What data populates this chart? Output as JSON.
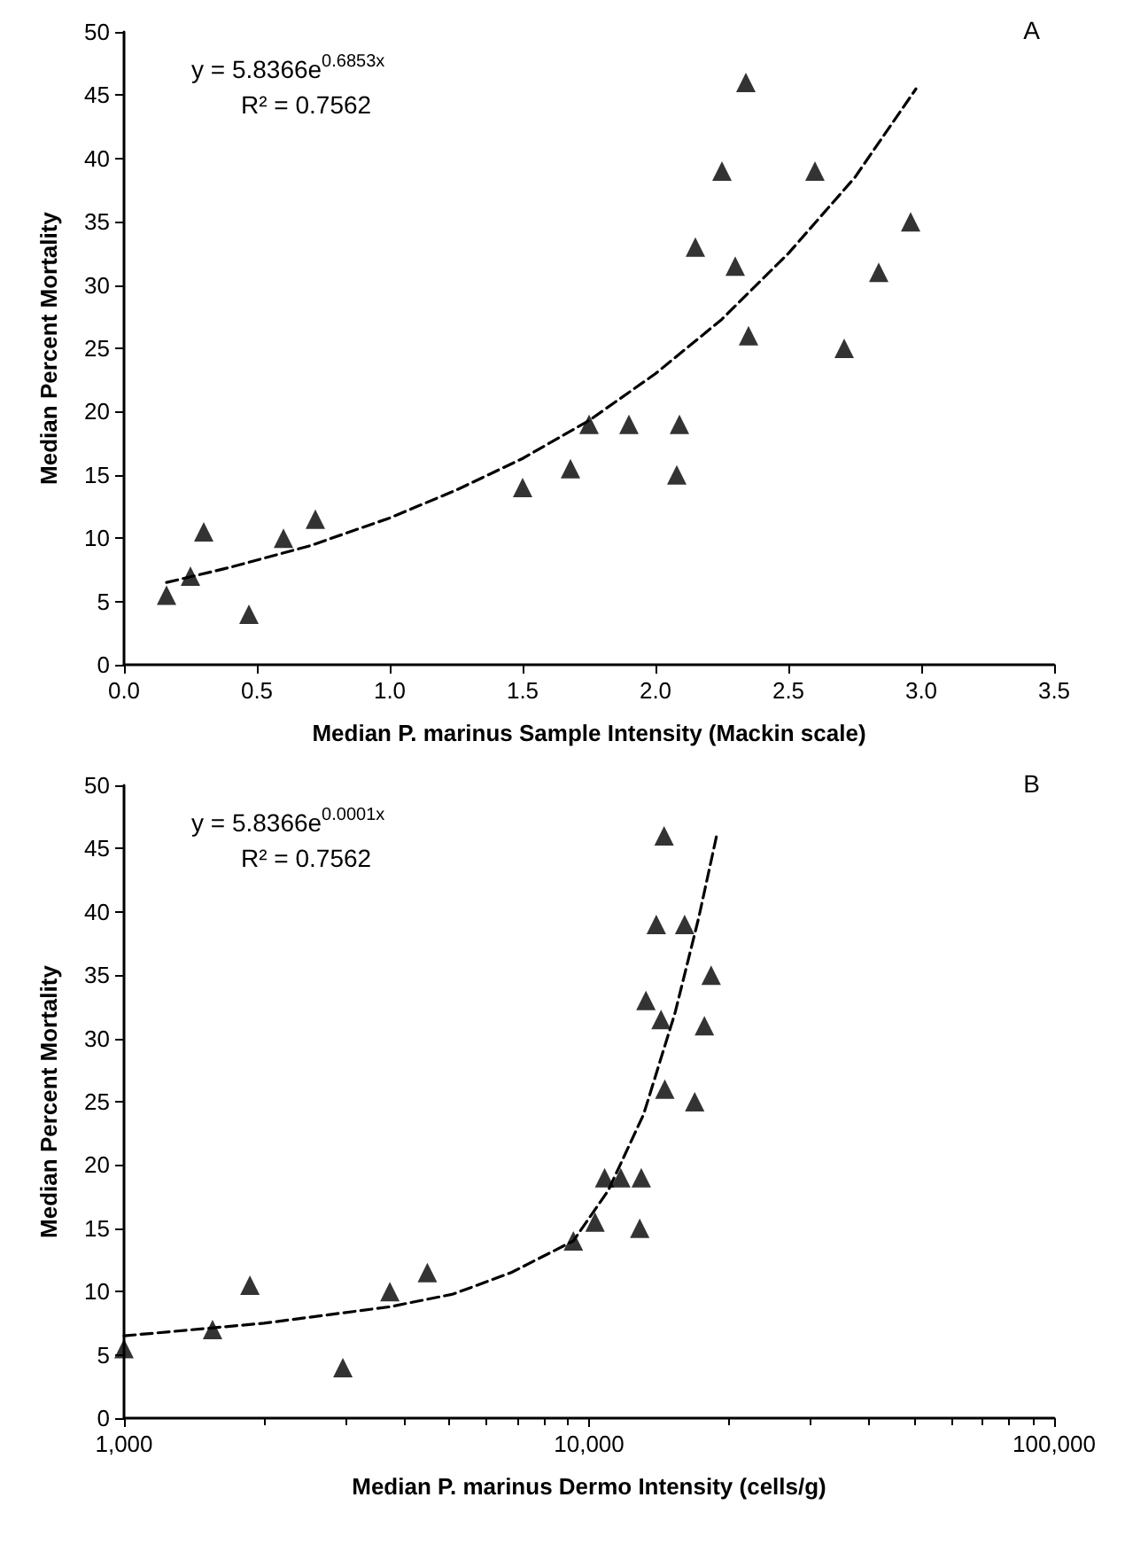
{
  "chart_data": [
    {
      "type": "scatter",
      "xlabel": "Median P. marinus Sample Intensity (Mackin scale)",
      "ylabel": "Median Percent Mortality",
      "annotations": [
        "y = 5.8366e$^{0.6853x}$",
        "R² = 0.7562",
        "A"
      ],
      "xlim": [
        0,
        3.5
      ],
      "xticks": [
        {
          "value": 0,
          "label": "0.0"
        },
        {
          "value": 0.5,
          "label": "0.5"
        },
        {
          "value": 1,
          "label": "1.0"
        },
        {
          "value": 1.5,
          "label": "1.5"
        },
        {
          "value": 2,
          "label": "2.0"
        },
        {
          "value": 2.5,
          "label": "2.5"
        },
        {
          "value": 3,
          "label": "3.0"
        },
        {
          "value": 3.5,
          "label": "3.5"
        }
      ],
      "ylim": [
        0,
        50
      ],
      "yticks": [
        0,
        5,
        10,
        15,
        20,
        25,
        30,
        35,
        40,
        45,
        50
      ],
      "grid": false,
      "series": [
        {
          "color": "#000000",
          "marker": "triangle",
          "x": [
            0.16,
            0.25,
            0.3,
            0.47,
            0.6,
            0.72,
            1.5,
            1.68,
            1.75,
            1.9,
            2.08,
            2.09,
            2.15,
            2.25,
            2.3,
            2.34,
            2.35,
            2.6,
            2.71,
            2.84,
            2.96
          ],
          "values": [
            5.5,
            7,
            10.5,
            4,
            10,
            11.5,
            14,
            15.5,
            19,
            19,
            15,
            19,
            33,
            39,
            31.5,
            46,
            26,
            39,
            25,
            31,
            35
          ]
        },
        {
          "type": "line",
          "color": "#000000",
          "marker": "none",
          "line_style": "dashed",
          "x": [
            0.16,
            0.4,
            0.7,
            1.0,
            1.25,
            1.5,
            1.75,
            2.0,
            2.25,
            2.5,
            2.75,
            2.98
          ],
          "values": [
            6.5,
            7.7,
            9.4,
            11.6,
            13.8,
            16.3,
            19.3,
            23,
            27.3,
            32.5,
            38.5,
            45.5
          ]
        }
      ]
    },
    {
      "type": "scatter",
      "xlabel": "Median P. marinus Dermo Intensity (cells/g)",
      "ylabel": "Median Percent Mortality",
      "annotations": [
        "y = 5.8366e$^{0.0001x}$",
        "R² = 0.7562",
        "B"
      ],
      "log": "x",
      "xlim": [
        1000,
        100000
      ],
      "xticks": [
        {
          "value": 1000,
          "label": "1,000"
        },
        {
          "value": 10000,
          "label": "10,000"
        },
        {
          "value": 100000,
          "label": "100,000"
        }
      ],
      "ylim": [
        0,
        50
      ],
      "yticks": [
        0,
        5,
        10,
        15,
        20,
        25,
        30,
        35,
        40,
        45,
        50
      ],
      "grid": false,
      "series": [
        {
          "color": "#000000",
          "marker": "triangle",
          "x": [
            1000,
            1550,
            1865,
            2955,
            3730,
            4490,
            9250,
            10300,
            10800,
            11700,
            12850,
            12950,
            13250,
            13950,
            14280,
            14500,
            14550,
            16050,
            16870,
            17700,
            18300
          ],
          "values": [
            5.5,
            7,
            10.5,
            4,
            10,
            11.5,
            14,
            15.5,
            19,
            19,
            15,
            19,
            33,
            39,
            31.5,
            46,
            26,
            39,
            25,
            31,
            35
          ]
        },
        {
          "type": "line",
          "color": "#000000",
          "marker": "none",
          "line_style": "dashed",
          "x": [
            1000,
            2000,
            3730,
            5100,
            6800,
            9250,
            11000,
            13100,
            15300,
            17200,
            18800
          ],
          "values": [
            6.5,
            7.5,
            8.8,
            9.8,
            11.5,
            14,
            18,
            24,
            32,
            39.5,
            46
          ]
        }
      ]
    }
  ]
}
